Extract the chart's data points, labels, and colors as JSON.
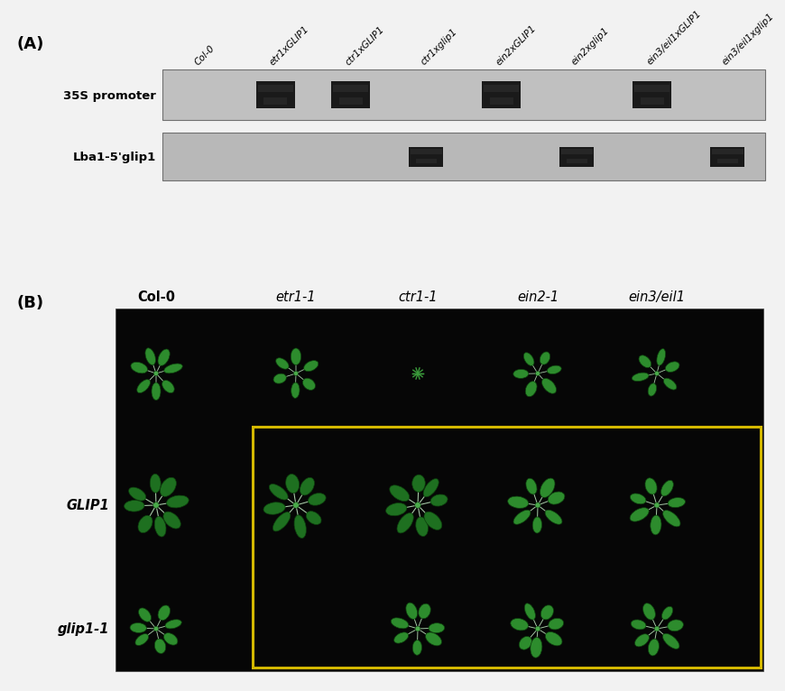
{
  "panel_A_label": "(A)",
  "panel_B_label": "(B)",
  "bg_color": "#f2f2f2",
  "lane_labels": [
    "Col-0",
    "etr1xGLIP1",
    "ctr1xGLIP1",
    "ctr1xglip1",
    "ein2xGLIP1",
    "ein2xglip1",
    "ein3/eil1xGLIP1",
    "ein3/eil1xglip1"
  ],
  "row1_label": "35S promoter",
  "row2_label": "Lba1-5'glip1",
  "row1_bands": [
    0,
    1,
    1,
    0,
    1,
    0,
    1,
    0
  ],
  "row2_bands": [
    0,
    0,
    0,
    1,
    0,
    1,
    0,
    1
  ],
  "gel1_color": "#c0c0c0",
  "gel2_color": "#b8b8b8",
  "band_color": "#1c1c1c",
  "B_col_labels": [
    "Col-0",
    "etr1-1",
    "ctr1-1",
    "ein2-1",
    "ein3/eil1"
  ],
  "B_col_italic": [
    false,
    true,
    true,
    true,
    true
  ],
  "B_col_bold": [
    true,
    false,
    false,
    false,
    false
  ],
  "B_row_labels": [
    "GLIP1",
    "glip1-1"
  ],
  "B_row_italic": [
    true,
    true
  ],
  "photo_bg": "#060606",
  "box_color": "#d4b800",
  "leaf_green": "#2d8c2d",
  "leaf_dark": "#1a6020",
  "leaf_edge": "#0e4010"
}
